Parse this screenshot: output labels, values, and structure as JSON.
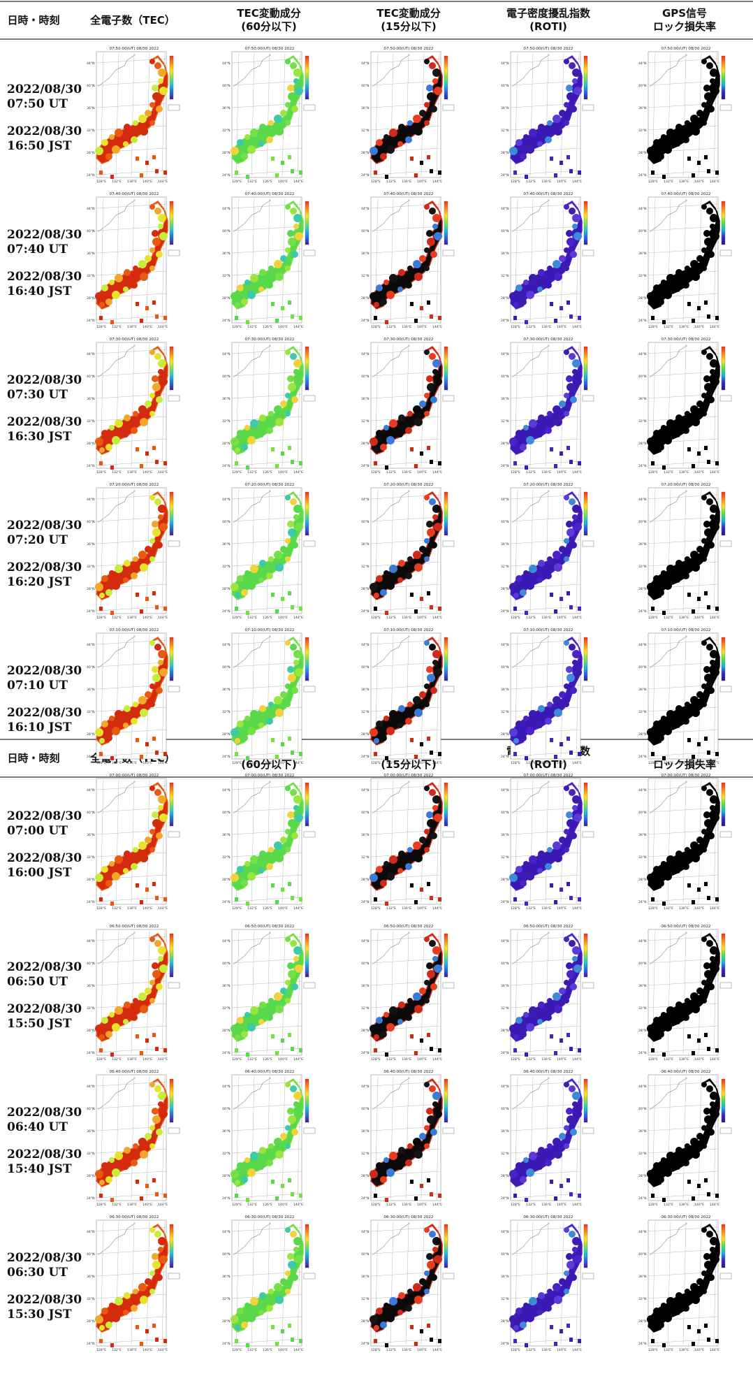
{
  "headers": [
    {
      "line1": "日時・時刻",
      "line2": ""
    },
    {
      "line1": "全電子数（TEC）",
      "line2": ""
    },
    {
      "line1": "TEC変動成分",
      "line2": "(60分以下)"
    },
    {
      "line1": "TEC変動成分",
      "line2": "(15分以下)"
    },
    {
      "line1": "電子密度擾乱指数",
      "line2": "(ROTI)"
    },
    {
      "line1": "GPS信号",
      "line2": "ロック損失率"
    }
  ],
  "map": {
    "lat_labels": [
      "44°N",
      "40°N",
      "36°N",
      "32°N",
      "28°N",
      "24°N"
    ],
    "lon_labels": [
      "128°E",
      "132°E",
      "136°E",
      "140°E",
      "144°E"
    ]
  },
  "map_types": [
    {
      "name": "tec",
      "colors": [
        "#d42a0e",
        "#e85a10",
        "#f2a62a",
        "#e6e32a",
        "#c8ec3a"
      ]
    },
    {
      "name": "tec60",
      "colors": [
        "#58d84a",
        "#72e046",
        "#9ae63e",
        "#3ec9a8",
        "#f0d23a"
      ]
    },
    {
      "name": "tec15",
      "colors": [
        "#0a0a0a",
        "#d02a18",
        "#141414",
        "#e83c20",
        "#3a7ad8"
      ]
    },
    {
      "name": "roti",
      "colors": [
        "#3a19b4",
        "#4a22c8",
        "#3c1cae",
        "#5a3ad8",
        "#3f8ad8"
      ]
    },
    {
      "name": "lol",
      "colors": [
        "#000000",
        "#000000",
        "#000000",
        "#000000",
        "#000000"
      ]
    }
  ],
  "rows": [
    {
      "ut_date": "2022/08/30",
      "ut_time": "07:50 UT",
      "jst_date": "2022/08/30",
      "jst_time": "16:50 JST",
      "map_title": "07:50:00(UT) 08/30 2022"
    },
    {
      "ut_date": "2022/08/30",
      "ut_time": "07:40 UT",
      "jst_date": "2022/08/30",
      "jst_time": "16:40 JST",
      "map_title": "07:40:00(UT) 08/30 2022"
    },
    {
      "ut_date": "2022/08/30",
      "ut_time": "07:30 UT",
      "jst_date": "2022/08/30",
      "jst_time": "16:30 JST",
      "map_title": "07:30:00(UT) 08/30 2022"
    },
    {
      "ut_date": "2022/08/30",
      "ut_time": "07:20 UT",
      "jst_date": "2022/08/30",
      "jst_time": "16:20 JST",
      "map_title": "07:20:00(UT) 08/30 2022"
    },
    {
      "ut_date": "2022/08/30",
      "ut_time": "07:10 UT",
      "jst_date": "2022/08/30",
      "jst_time": "16:10 JST",
      "map_title": "07:10:00(UT) 08/30 2022"
    },
    {
      "ut_date": "2022/08/30",
      "ut_time": "07:00 UT",
      "jst_date": "2022/08/30",
      "jst_time": "16:00 JST",
      "map_title": "07:00:00(UT) 08/30 2022"
    },
    {
      "ut_date": "2022/08/30",
      "ut_time": "06:50 UT",
      "jst_date": "2022/08/30",
      "jst_time": "15:50 JST",
      "map_title": "06:50:00(UT) 08/30 2022"
    },
    {
      "ut_date": "2022/08/30",
      "ut_time": "06:40 UT",
      "jst_date": "2022/08/30",
      "jst_time": "15:40 JST",
      "map_title": "06:40:00(UT) 08/30 2022"
    },
    {
      "ut_date": "2022/08/30",
      "ut_time": "06:30 UT",
      "jst_date": "2022/08/30",
      "jst_time": "15:30 JST",
      "map_title": "06:30:00(UT) 08/30 2022"
    }
  ]
}
